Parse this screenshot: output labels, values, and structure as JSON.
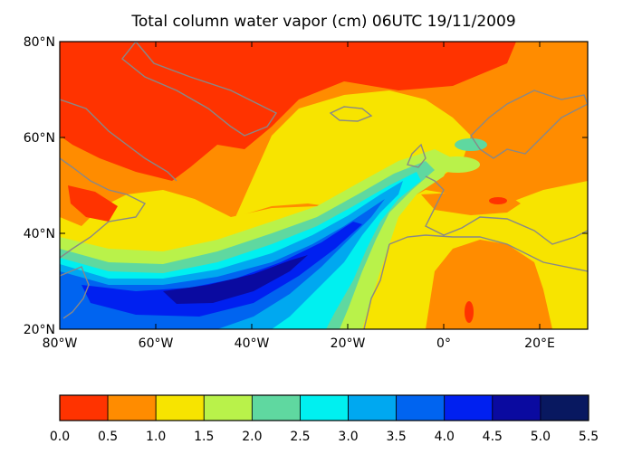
{
  "title": "Total column water vapor (cm) 06UTC 19/11/2009",
  "y_axis": {
    "ticks": [
      {
        "label": "80°N",
        "value": 80
      },
      {
        "label": "60°N",
        "value": 60
      },
      {
        "label": "40°N",
        "value": 40
      },
      {
        "label": "20°N",
        "value": 20
      }
    ],
    "range": [
      20,
      80
    ]
  },
  "x_axis": {
    "ticks": [
      {
        "label": "80°W",
        "value": -80
      },
      {
        "label": "60°W",
        "value": -60
      },
      {
        "label": "40°W",
        "value": -40
      },
      {
        "label": "20°W",
        "value": -20
      },
      {
        "label": "0°",
        "value": 0
      },
      {
        "label": "20°E",
        "value": 20
      }
    ],
    "range": [
      -80,
      30
    ]
  },
  "colorbar": {
    "labels": [
      "0.0",
      "0.5",
      "1.0",
      "1.5",
      "2.0",
      "2.5",
      "3.0",
      "3.5",
      "4.0",
      "4.5",
      "5.0",
      "5.5"
    ],
    "colors": [
      "#ff3300",
      "#ff8c00",
      "#f7e400",
      "#b9f24a",
      "#5fd8a0",
      "#00f0f0",
      "#00a8f0",
      "#0064f0",
      "#0020f0",
      "#0a0aa0",
      "#081860"
    ]
  }
}
